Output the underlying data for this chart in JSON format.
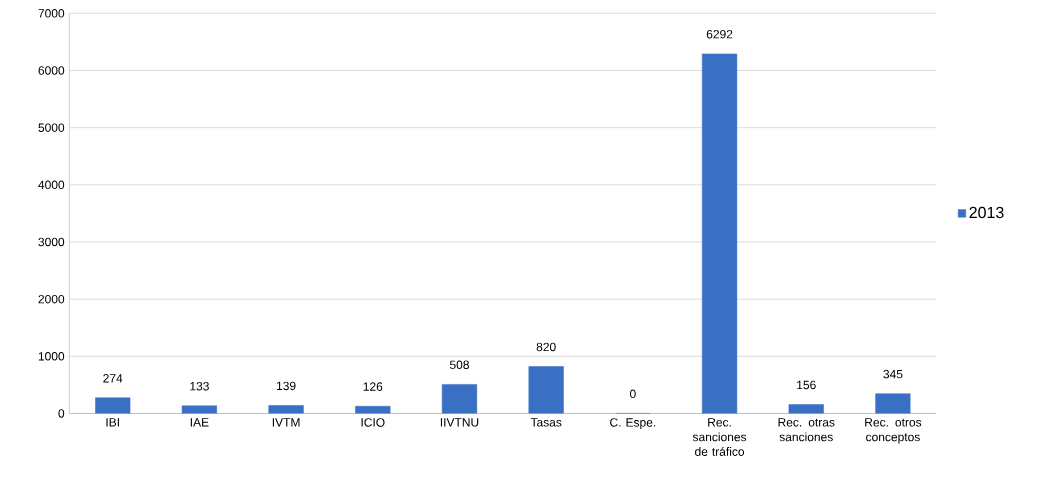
{
  "chart_data": {
    "type": "bar",
    "categories": [
      "IBI",
      "IAE",
      "IVTM",
      "ICIO",
      "IIVTNU",
      "Tasas",
      "C. Espe.",
      "Rec. sanciones de tráfico",
      "Rec. otras sanciones",
      "Rec. otros conceptos"
    ],
    "series": [
      {
        "name": "2013",
        "color": "#3a70c4",
        "values": [
          274,
          133,
          139,
          126,
          508,
          820,
          0,
          6292,
          156,
          345
        ]
      }
    ],
    "ylim": [
      0,
      7000
    ],
    "yticks": [
      0,
      1000,
      2000,
      3000,
      4000,
      5000,
      6000,
      7000
    ],
    "grid": "y",
    "legend": "right",
    "data_labels": true
  }
}
